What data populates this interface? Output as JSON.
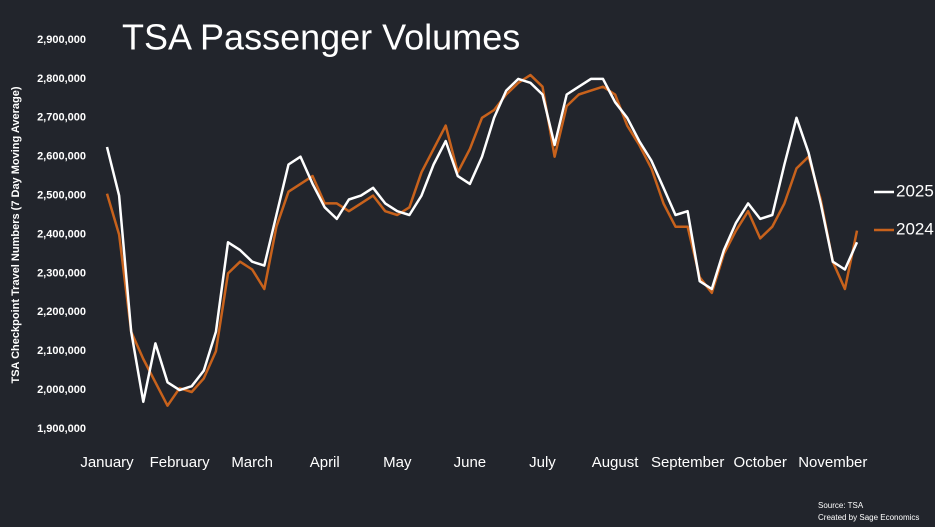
{
  "chart_data": {
    "type": "line",
    "title": "TSA Passenger Volumes",
    "y_label": "TSA Checkpoint Travel Numbers (7 Day Moving Average)",
    "source": "Source: TSA",
    "credit": "Created by Sage Economics",
    "categories": [
      "January",
      null,
      null,
      null,
      null,
      null,
      "February",
      null,
      null,
      null,
      null,
      null,
      "March",
      null,
      null,
      null,
      null,
      null,
      "April",
      null,
      null,
      null,
      null,
      null,
      "May",
      null,
      null,
      null,
      null,
      null,
      "June",
      null,
      null,
      null,
      null,
      null,
      "July",
      null,
      null,
      null,
      null,
      null,
      "August",
      null,
      null,
      null,
      null,
      null,
      "September",
      null,
      null,
      null,
      null,
      null,
      "October",
      null,
      null,
      null,
      null,
      null,
      "November",
      null,
      null
    ],
    "series": [
      {
        "name": "2025",
        "color": "#ffffff",
        "values": [
          2625000,
          2500000,
          2150000,
          1970000,
          2120000,
          2020000,
          2000000,
          2010000,
          2050000,
          2150000,
          2380000,
          2360000,
          2330000,
          2320000,
          2450000,
          2580000,
          2600000,
          2530000,
          2470000,
          2440000,
          2490000,
          2500000,
          2520000,
          2480000,
          2460000,
          2450000,
          2500000,
          2580000,
          2640000,
          2550000,
          2530000,
          2600000,
          2700000,
          2770000,
          2800000,
          2790000,
          2760000,
          2630000,
          2760000,
          2780000,
          2800000,
          2800000,
          2740000,
          2700000,
          2640000,
          2590000,
          2520000,
          2450000,
          2460000,
          2280000,
          2260000,
          2360000,
          2430000,
          2480000,
          2440000,
          2450000,
          2580000,
          2700000,
          2610000,
          2480000,
          2330000,
          2310000,
          2380000
        ]
      },
      {
        "name": "2024",
        "color": "#c8621c",
        "values": [
          2505000,
          2400000,
          2150000,
          2080000,
          2020000,
          1960000,
          2005000,
          1995000,
          2030000,
          2100000,
          2300000,
          2330000,
          2310000,
          2260000,
          2420000,
          2510000,
          2530000,
          2550000,
          2480000,
          2480000,
          2460000,
          2480000,
          2500000,
          2460000,
          2450000,
          2470000,
          2560000,
          2620000,
          2680000,
          2560000,
          2620000,
          2700000,
          2720000,
          2760000,
          2790000,
          2810000,
          2780000,
          2600000,
          2730000,
          2760000,
          2770000,
          2780000,
          2760000,
          2680000,
          2630000,
          2570000,
          2480000,
          2420000,
          2420000,
          2290000,
          2250000,
          2350000,
          2410000,
          2460000,
          2390000,
          2420000,
          2480000,
          2570000,
          2600000,
          2490000,
          2330000,
          2260000,
          2410000
        ]
      }
    ],
    "ylim": [
      1900000,
      2900000
    ],
    "yticks": [
      {
        "value": 1900000,
        "label": "1,900,000"
      },
      {
        "value": 2000000,
        "label": "2,000,000"
      },
      {
        "value": 2100000,
        "label": "2,100,000"
      },
      {
        "value": 2200000,
        "label": "2,200,000"
      },
      {
        "value": 2300000,
        "label": "2,300,000"
      },
      {
        "value": 2400000,
        "label": "2,400,000"
      },
      {
        "value": 2500000,
        "label": "2,500,000"
      },
      {
        "value": 2600000,
        "label": "2,600,000"
      },
      {
        "value": 2700000,
        "label": "2,700,000"
      },
      {
        "value": 2800000,
        "label": "2,800,000"
      },
      {
        "value": 2900000,
        "label": "2,900,000"
      }
    ],
    "grid": false,
    "legend": "right"
  }
}
